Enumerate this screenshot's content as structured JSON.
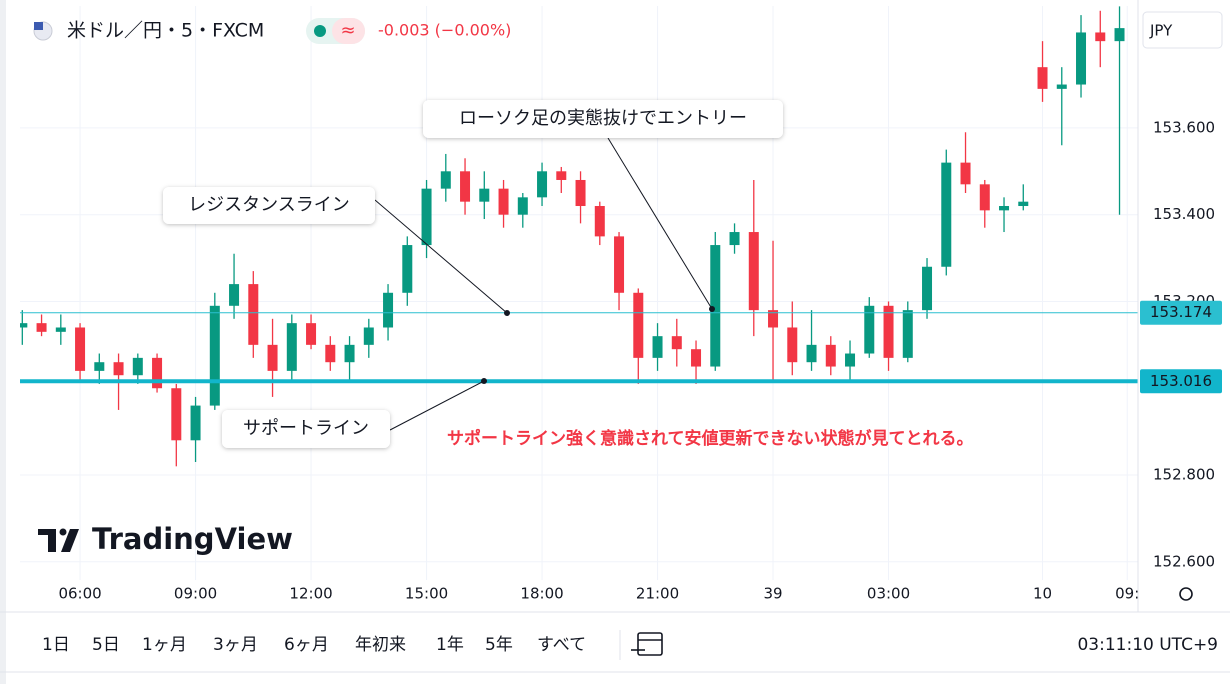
{
  "header": {
    "symbol": "米ドル／円・5・FXCM",
    "indicator": "≈",
    "change": "-0.003 (−0.00%)",
    "currency": "JPY"
  },
  "chart_data": {
    "type": "candlestick",
    "open": [
      153.14,
      153.15,
      153.13,
      153.14,
      153.04,
      153.06,
      153.03,
      153.07,
      153.0,
      152.88,
      152.96,
      153.19,
      153.24,
      153.1,
      153.04,
      153.15,
      153.1,
      153.06,
      153.1,
      153.14,
      153.22,
      153.33,
      153.46,
      153.5,
      153.43,
      153.46,
      153.4,
      153.44,
      153.5,
      153.48,
      153.42,
      153.35,
      153.22,
      153.07,
      153.12,
      153.09,
      153.05,
      153.33,
      153.36,
      153.18,
      153.14,
      153.06,
      153.1,
      153.05,
      153.08,
      153.19,
      153.07,
      153.18,
      153.28,
      153.52,
      153.47,
      153.41,
      153.42,
      153.74,
      153.69,
      153.7,
      153.82,
      153.8
    ],
    "high": [
      153.18,
      153.17,
      153.17,
      153.15,
      153.08,
      153.08,
      153.08,
      153.08,
      153.01,
      152.98,
      153.22,
      153.31,
      153.27,
      153.16,
      153.17,
      153.17,
      153.12,
      153.12,
      153.16,
      153.24,
      153.35,
      153.48,
      153.54,
      153.53,
      153.5,
      153.48,
      153.45,
      153.52,
      153.51,
      153.5,
      153.43,
      153.36,
      153.23,
      153.15,
      153.16,
      153.11,
      153.36,
      153.38,
      153.48,
      153.34,
      153.2,
      153.18,
      153.12,
      153.11,
      153.21,
      153.2,
      153.2,
      153.3,
      153.55,
      153.59,
      153.48,
      153.44,
      153.47,
      153.8,
      153.74,
      153.86,
      153.87,
      153.88
    ],
    "low": [
      153.1,
      153.12,
      153.1,
      153.02,
      153.01,
      152.95,
      153.01,
      152.99,
      152.82,
      152.83,
      152.95,
      153.16,
      153.07,
      152.98,
      153.02,
      153.09,
      153.04,
      153.02,
      153.07,
      153.11,
      153.19,
      153.3,
      153.43,
      153.4,
      153.39,
      153.37,
      153.37,
      153.42,
      153.45,
      153.38,
      153.33,
      153.18,
      153.01,
      153.04,
      153.05,
      153.01,
      153.04,
      153.31,
      153.12,
      153.02,
      153.03,
      153.04,
      153.03,
      153.02,
      153.07,
      153.04,
      153.06,
      153.16,
      153.26,
      153.45,
      153.37,
      153.36,
      153.41,
      153.66,
      153.56,
      153.67,
      153.74,
      153.4
    ],
    "close": [
      153.15,
      153.13,
      153.14,
      153.04,
      153.06,
      153.03,
      153.07,
      153.0,
      152.88,
      152.96,
      153.19,
      153.24,
      153.1,
      153.04,
      153.15,
      153.1,
      153.06,
      153.1,
      153.14,
      153.22,
      153.33,
      153.46,
      153.5,
      153.43,
      153.46,
      153.4,
      153.44,
      153.5,
      153.48,
      153.42,
      153.35,
      153.22,
      153.07,
      153.12,
      153.09,
      153.05,
      153.33,
      153.36,
      153.18,
      153.14,
      153.06,
      153.1,
      153.05,
      153.08,
      153.19,
      153.07,
      153.18,
      153.28,
      153.52,
      153.47,
      153.41,
      153.42,
      153.43,
      153.69,
      153.7,
      153.82,
      153.8,
      153.83
    ],
    "up_color": "#089981",
    "down_color": "#f23645",
    "xlim": [
      -0.12,
      57.96
    ],
    "xticks": [
      {
        "value": 3,
        "label": "06:00"
      },
      {
        "value": 9,
        "label": "09:00"
      },
      {
        "value": 15,
        "label": "12:00"
      },
      {
        "value": 21,
        "label": "15:00"
      },
      {
        "value": 27,
        "label": "18:00"
      },
      {
        "value": 33,
        "label": "21:00"
      },
      39,
      {
        "value": 45,
        "label": "03:00"
      },
      {
        "value": 53,
        "label": "10"
      },
      {
        "value": 57.4,
        "label": "09:"
      }
    ],
    "ylim": [
      152.558,
      153.881
    ],
    "yticks": [
      {
        "value": 152.6,
        "label": "152.600"
      },
      {
        "value": 152.8,
        "label": "152.800"
      },
      {
        "value": 153.2,
        "label": "153.200"
      },
      {
        "value": 153.4,
        "label": "153.400"
      },
      {
        "value": 153.6,
        "label": "153.600"
      }
    ],
    "grid": true,
    "hlines": [
      {
        "value": 153.174,
        "color": "#2bbfd0"
      },
      {
        "value": 153.016,
        "color": "#12b5cb"
      }
    ],
    "annotations": [
      {
        "text": "ローソク足の実態抜けでエントリー"
      },
      {
        "text": "レジスタンスライン"
      },
      {
        "text": "サポートライン"
      }
    ],
    "note": "サポートライン強く意識されて安値更新できない状態が見てとれる。"
  },
  "watermark": "TradingView",
  "toolbar": {
    "ranges": [
      "1日",
      "5日",
      "1ヶ月",
      "3ヶ月",
      "6ヶ月",
      "年初来",
      "1年",
      "5年",
      "すべて"
    ],
    "clock": "03:11:10 UTC+9"
  }
}
